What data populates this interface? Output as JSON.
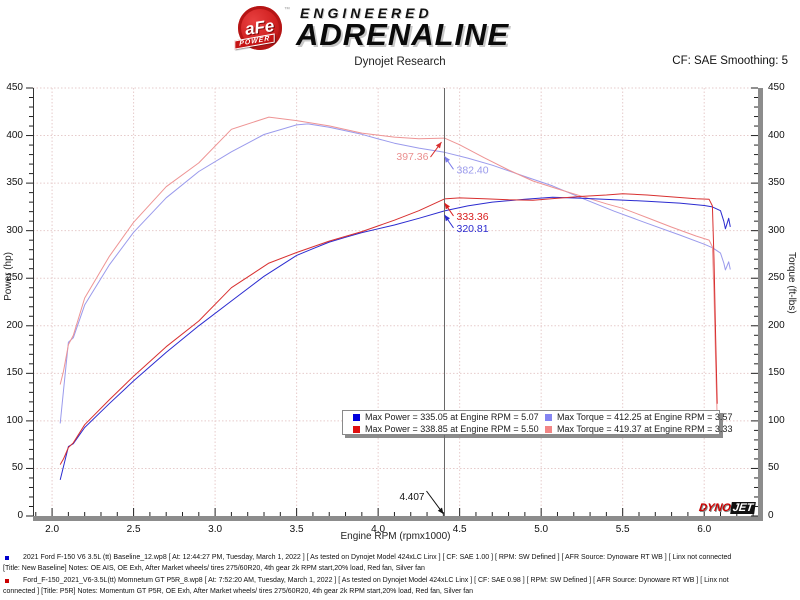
{
  "header": {
    "logo": {
      "circle_text": "aFe",
      "banner": "POWER",
      "trademark": "™",
      "line1": "ENGINEERED",
      "line2": "ADRENALINE"
    },
    "title": "Dynojet Research",
    "smoothing_label": "CF: SAE Smoothing: 5"
  },
  "chart_data": {
    "type": "line",
    "title": "Dynojet Research",
    "xlabel": "Engine RPM (rpmx1000)",
    "ylabel_left": "Power (hp)",
    "ylabel_right": "Torque (ft-lbs)",
    "x_range": [
      1.883,
      6.33
    ],
    "y_range": [
      0,
      450
    ],
    "x_major_ticks": [
      2.0,
      2.5,
      3.0,
      3.5,
      4.0,
      4.5,
      5.0,
      5.5,
      6.0
    ],
    "x_minor_step": 0.1,
    "y_major_step": 50,
    "y_minor_step": 10,
    "grid": {
      "on": true,
      "color": "#e6cbcb"
    },
    "axis_colors": {
      "axis_line": "#333333",
      "thick_border": "#8c8c8c",
      "cursor": "#666666"
    },
    "cursor": {
      "rpm": 4.407,
      "label": "4.407"
    },
    "series": [
      {
        "name": "baseline-torque",
        "color": "#9a9aec",
        "width": 1,
        "points": [
          [
            2.05,
            97.4
          ],
          [
            2.07,
            131.9
          ],
          [
            2.1,
            182.6
          ],
          [
            2.13,
            187.4
          ],
          [
            2.2,
            222
          ],
          [
            2.35,
            263.7
          ],
          [
            2.5,
            298.3
          ],
          [
            2.7,
            334.6
          ],
          [
            2.9,
            362.2
          ],
          [
            3.1,
            382.9
          ],
          [
            3.3,
            401.1
          ],
          [
            3.5,
            411.2
          ],
          [
            3.57,
            412.25
          ],
          [
            3.7,
            408.8
          ],
          [
            3.8,
            405
          ],
          [
            3.9,
            401.3
          ],
          [
            4.0,
            396.5
          ],
          [
            4.1,
            392
          ],
          [
            4.25,
            386.8
          ],
          [
            4.407,
            382.4
          ],
          [
            4.55,
            376.3
          ],
          [
            4.7,
            368.8
          ],
          [
            4.9,
            356.9
          ],
          [
            5.07,
            347.1
          ],
          [
            5.25,
            334.1
          ],
          [
            5.45,
            320.4
          ],
          [
            5.65,
            307.7
          ],
          [
            5.85,
            295.4
          ],
          [
            6.0,
            285.8
          ],
          [
            6.05,
            282.1
          ],
          [
            6.1,
            276.4
          ],
          [
            6.12,
            266
          ],
          [
            6.13,
            258.7
          ],
          [
            6.15,
            267.3
          ],
          [
            6.16,
            259.2
          ]
        ]
      },
      {
        "name": "p5r-torque",
        "color": "#ee9494",
        "width": 1,
        "points": [
          [
            2.05,
            138.3
          ],
          [
            2.07,
            152.2
          ],
          [
            2.1,
            180.1
          ],
          [
            2.13,
            189.9
          ],
          [
            2.2,
            229.2
          ],
          [
            2.35,
            272.6
          ],
          [
            2.5,
            308.8
          ],
          [
            2.7,
            346.2
          ],
          [
            2.9,
            371.3
          ],
          [
            3.1,
            406.6
          ],
          [
            3.33,
            419.37
          ],
          [
            3.5,
            415.7
          ],
          [
            3.7,
            410.2
          ],
          [
            3.9,
            402.6
          ],
          [
            4.1,
            398.4
          ],
          [
            4.25,
            396.6
          ],
          [
            4.407,
            397.36
          ],
          [
            4.5,
            390.3
          ],
          [
            4.65,
            376.7
          ],
          [
            4.8,
            363.8
          ],
          [
            4.95,
            352.2
          ],
          [
            5.1,
            343.9
          ],
          [
            5.25,
            336.1
          ],
          [
            5.4,
            328.2
          ],
          [
            5.5,
            323.5
          ],
          [
            5.65,
            313.7
          ],
          [
            5.8,
            303.8
          ],
          [
            5.95,
            294.4
          ],
          [
            6.03,
            290.1
          ],
          [
            6.05,
            283
          ],
          [
            6.06,
            233.9
          ],
          [
            6.07,
            164.4
          ],
          [
            6.08,
            101.9
          ]
        ]
      },
      {
        "name": "baseline-power",
        "color": "#2b2bd0",
        "width": 1,
        "points": [
          [
            2.05,
            38
          ],
          [
            2.07,
            52
          ],
          [
            2.1,
            73
          ],
          [
            2.13,
            76
          ],
          [
            2.2,
            93
          ],
          [
            2.35,
            118
          ],
          [
            2.5,
            142
          ],
          [
            2.7,
            172
          ],
          [
            2.9,
            200
          ],
          [
            3.1,
            226
          ],
          [
            3.3,
            252
          ],
          [
            3.5,
            274
          ],
          [
            3.6,
            281
          ],
          [
            3.7,
            288
          ],
          [
            3.8,
            293
          ],
          [
            3.9,
            298
          ],
          [
            4.0,
            302
          ],
          [
            4.1,
            306
          ],
          [
            4.25,
            313
          ],
          [
            4.407,
            320.81
          ],
          [
            4.55,
            326
          ],
          [
            4.7,
            330
          ],
          [
            4.9,
            333
          ],
          [
            5.07,
            335.05
          ],
          [
            5.25,
            334
          ],
          [
            5.45,
            332.5
          ],
          [
            5.65,
            331
          ],
          [
            5.85,
            329
          ],
          [
            6.0,
            326.5
          ],
          [
            6.05,
            325
          ],
          [
            6.1,
            321
          ],
          [
            6.12,
            310
          ],
          [
            6.13,
            302
          ],
          [
            6.15,
            313
          ],
          [
            6.16,
            304
          ]
        ]
      },
      {
        "name": "p5r-power",
        "color": "#d83030",
        "width": 1,
        "points": [
          [
            2.05,
            54
          ],
          [
            2.07,
            60
          ],
          [
            2.1,
            72
          ],
          [
            2.13,
            77
          ],
          [
            2.2,
            96
          ],
          [
            2.35,
            122
          ],
          [
            2.5,
            147
          ],
          [
            2.7,
            178
          ],
          [
            2.9,
            205
          ],
          [
            3.1,
            240
          ],
          [
            3.33,
            265.9
          ],
          [
            3.5,
            277
          ],
          [
            3.7,
            289
          ],
          [
            3.9,
            299
          ],
          [
            4.1,
            311
          ],
          [
            4.25,
            321
          ],
          [
            4.407,
            333.36
          ],
          [
            4.5,
            334.5
          ],
          [
            4.65,
            333.5
          ],
          [
            4.8,
            332.5
          ],
          [
            4.95,
            332
          ],
          [
            5.1,
            334
          ],
          [
            5.25,
            336
          ],
          [
            5.4,
            337.5
          ],
          [
            5.5,
            338.85
          ],
          [
            5.65,
            337.5
          ],
          [
            5.8,
            335.5
          ],
          [
            5.95,
            333.5
          ],
          [
            6.03,
            333
          ],
          [
            6.05,
            326
          ],
          [
            6.06,
            270
          ],
          [
            6.07,
            190
          ],
          [
            6.08,
            118
          ]
        ]
      }
    ],
    "annotations": [
      {
        "label": "397.36",
        "rpm": 4.407,
        "value": 397.36,
        "side": "left",
        "text_color": "#ea8f8f",
        "arrow_color": "#d93030"
      },
      {
        "label": "382.40",
        "rpm": 4.407,
        "value": 382.4,
        "side": "right",
        "text_color": "#9a9aec",
        "arrow_color": "#7d7dea"
      },
      {
        "label": "333.36",
        "rpm": 4.407,
        "value": 333.36,
        "side": "right",
        "text_color": "#d92020",
        "arrow_color": "#d92020"
      },
      {
        "label": "320.81",
        "rpm": 4.407,
        "value": 320.81,
        "side": "right",
        "text_color": "#2b2bd0",
        "arrow_color": "#2b2bd0"
      }
    ],
    "legend": {
      "position": "bottom-center",
      "items": [
        {
          "swatch": "#0000dd",
          "text": "Max Power = 335.05 at Engine RPM = 5.07"
        },
        {
          "swatch": "#8585f2",
          "text": "Max Torque = 412.25 at Engine RPM = 3.57"
        },
        {
          "swatch": "#e01010",
          "text": "Max Power = 338.85 at Engine RPM = 5.50"
        },
        {
          "swatch": "#f28585",
          "text": "Max Torque = 419.37 at Engine RPM = 3.33"
        }
      ]
    },
    "watermark": {
      "part1": "DYNO",
      "part2": "JET"
    }
  },
  "footer": {
    "entries": [
      {
        "bullet_color": "#0000cc",
        "line1": "2021 Ford F-150 V6 3.5L (tt) Baseline_12.wp8 [ At: 12:44:27 PM, Tuesday, March 1, 2022 ] [ As tested on Dynojet Model 424xLC Linx ] [ CF: SAE 1.00 ] [ RPM: SW Defined ] [ AFR Source: Dynoware RT WB ] [ Linx not connected",
        "line2": "[Title: New Baseline]  Notes: OE AIS, OE Exh, After Market wheels/ tires 275/60R20, 4th gear 2k RPM start,20% load, Red fan, Silver fan"
      },
      {
        "bullet_color": "#cc0000",
        "line1": "Ford_F-150_2021_V6-3.5L(tt) Momnetum GT P5R_8.wp8 [ At: 7:52:20 AM, Tuesday, March 1, 2022 ] [ As tested on Dynojet Model 424xLC Linx ] [ CF: SAE 0.98 ] [ RPM: SW Defined ] [ AFR Source: Dynoware RT WB ] [ Linx not",
        "line2": "connected ] [Title: P5R]  Notes: Momentum GT  P5R, OE Exh, After Market wheels/ tires 275/60R20, 4th gear 2k RPM start,20% load, Red fan, Silver fan"
      }
    ]
  }
}
